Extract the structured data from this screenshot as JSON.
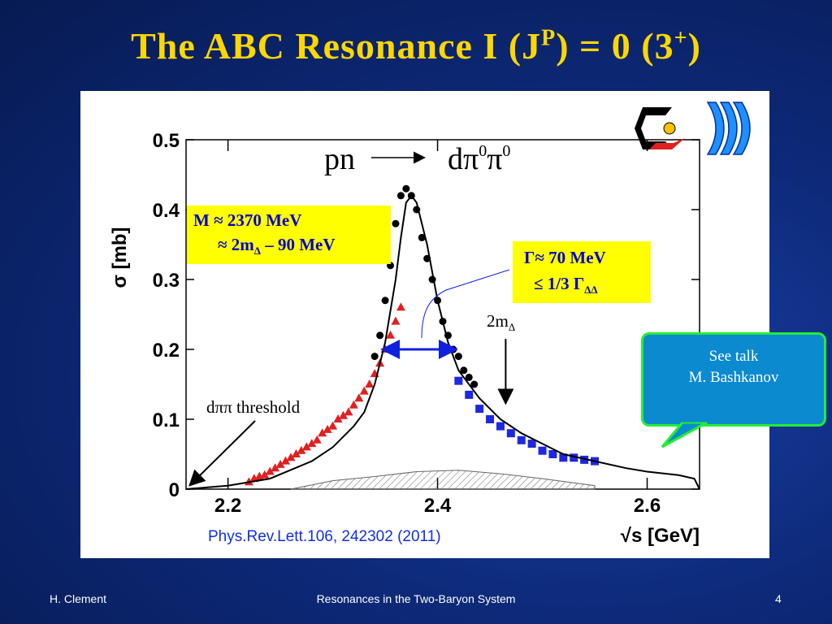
{
  "slide": {
    "title_main": "The ABC Resonance   I (J",
    "title_sup1": "P",
    "title_mid": ") = 0 (3",
    "title_sup2": "+",
    "title_end": ")",
    "footer_left": "H. Clement",
    "footer_center": "Resonances in the Two-Baryon System",
    "footer_right": "4"
  },
  "annotations": {
    "reaction_pn": "pn",
    "reaction_d": "dπ",
    "reaction_sup1": "0",
    "reaction_pi": "π",
    "reaction_sup2": "0",
    "mass_line1": "M ≈ 2370 MeV",
    "mass_line2a": "≈ 2m",
    "mass_line2sub": "Δ",
    "mass_line2b": " – 90 MeV",
    "width_line1": "Γ≈ 70 MeV",
    "width_line2a": "≤ 1/3  Γ",
    "width_line2sub": "ΔΔ",
    "two_m_delta": "2m",
    "two_m_delta_sub": "Δ",
    "threshold_label": "dππ  threshold",
    "reference": "Phys.Rev.Lett.106, 242302 (2011)",
    "callout_line1": "See talk",
    "callout_line2": "M. Bashkanov"
  },
  "chart_data": {
    "type": "scatter",
    "ylabel": "σ [mb]",
    "xlabel": "√s [GeV]",
    "xlim": [
      2.16,
      2.65
    ],
    "ylim": [
      0,
      0.5
    ],
    "x_ticks": [
      "2.2",
      "2.4",
      "2.6"
    ],
    "y_ticks": [
      "0",
      "0.1",
      "0.2",
      "0.3",
      "0.4",
      "0.5"
    ],
    "colors": {
      "red": "#e02020",
      "black": "#000000",
      "blue": "#1e28e0",
      "width_arrow": "#1020e0"
    },
    "series": [
      {
        "marker": "triangle",
        "color": "#e02020",
        "x": [
          2.22,
          2.225,
          2.23,
          2.235,
          2.24,
          2.245,
          2.25,
          2.255,
          2.26,
          2.265,
          2.27,
          2.275,
          2.28,
          2.285,
          2.29,
          2.295,
          2.3,
          2.305,
          2.31,
          2.315,
          2.32,
          2.325,
          2.33,
          2.335,
          2.34,
          2.345,
          2.35,
          2.355,
          2.36,
          2.365
        ],
        "y": [
          0.01,
          0.015,
          0.018,
          0.02,
          0.025,
          0.03,
          0.035,
          0.04,
          0.045,
          0.05,
          0.055,
          0.06,
          0.065,
          0.07,
          0.08,
          0.085,
          0.09,
          0.1,
          0.105,
          0.11,
          0.12,
          0.13,
          0.14,
          0.15,
          0.165,
          0.18,
          0.2,
          0.22,
          0.24,
          0.26
        ]
      },
      {
        "marker": "circle",
        "color": "#000000",
        "x": [
          2.34,
          2.345,
          2.35,
          2.355,
          2.36,
          2.365,
          2.37,
          2.375,
          2.38,
          2.385,
          2.39,
          2.395,
          2.4,
          2.405,
          2.41,
          2.415,
          2.42,
          2.425,
          2.43,
          2.435
        ],
        "y": [
          0.19,
          0.22,
          0.27,
          0.32,
          0.38,
          0.42,
          0.43,
          0.42,
          0.4,
          0.36,
          0.33,
          0.3,
          0.27,
          0.24,
          0.22,
          0.2,
          0.19,
          0.17,
          0.16,
          0.15
        ]
      },
      {
        "marker": "square",
        "color": "#1e28e0",
        "x": [
          2.42,
          2.43,
          2.44,
          2.45,
          2.46,
          2.47,
          2.48,
          2.49,
          2.5,
          2.51,
          2.52,
          2.53,
          2.54,
          2.55
        ],
        "y": [
          0.155,
          0.135,
          0.115,
          0.1,
          0.09,
          0.08,
          0.07,
          0.065,
          0.055,
          0.05,
          0.045,
          0.045,
          0.042,
          0.04
        ]
      }
    ],
    "fit_curve": {
      "x": [
        2.16,
        2.2,
        2.24,
        2.28,
        2.3,
        2.32,
        2.33,
        2.34,
        2.35,
        2.36,
        2.365,
        2.37,
        2.375,
        2.38,
        2.39,
        2.4,
        2.41,
        2.42,
        2.44,
        2.46,
        2.48,
        2.5,
        2.52,
        2.55,
        2.58,
        2.6,
        2.63,
        2.645,
        2.65
      ],
      "y": [
        0.0,
        0.005,
        0.015,
        0.04,
        0.06,
        0.09,
        0.11,
        0.15,
        0.21,
        0.3,
        0.36,
        0.41,
        0.42,
        0.41,
        0.35,
        0.27,
        0.21,
        0.17,
        0.13,
        0.1,
        0.08,
        0.065,
        0.05,
        0.04,
        0.03,
        0.025,
        0.02,
        0.015,
        0.0
      ]
    },
    "background_hatch": {
      "x": [
        2.26,
        2.3,
        2.34,
        2.38,
        2.42,
        2.46,
        2.5,
        2.55
      ],
      "y": [
        0.0,
        0.012,
        0.018,
        0.025,
        0.027,
        0.022,
        0.015,
        0.005
      ]
    },
    "width_arrow": {
      "x": [
        2.35,
        2.415
      ],
      "y": 0.2
    },
    "two_m_delta_arrow": {
      "x": 2.465,
      "y_from": 0.215,
      "y_to": 0.125
    },
    "threshold_arrow": {
      "x_to": 2.16,
      "y_to": 0.0
    }
  }
}
